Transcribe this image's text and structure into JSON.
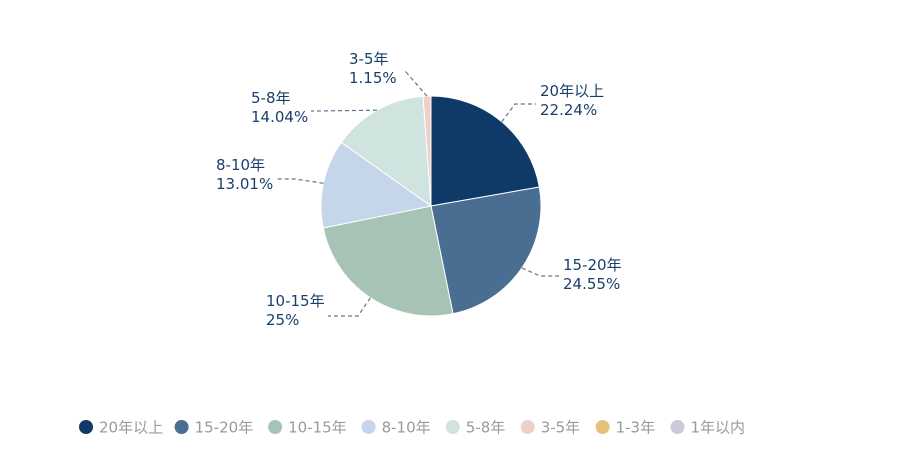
{
  "chart_data": {
    "type": "pie",
    "title": "",
    "legend_position": "bottom",
    "slices": [
      {
        "label": "20年以上",
        "value": 22.24,
        "value_text": "22.24%",
        "color": "#0f3966"
      },
      {
        "label": "15-20年",
        "value": 24.55,
        "value_text": "24.55%",
        "color": "#4a6e91"
      },
      {
        "label": "10-15年",
        "value": 25,
        "value_text": "25%",
        "color": "#a6c3b5"
      },
      {
        "label": "8-10年",
        "value": 13.01,
        "value_text": "13.01%",
        "color": "#c5d5ea"
      },
      {
        "label": "5-8年",
        "value": 14.04,
        "value_text": "14.04%",
        "color": "#cfe3df"
      },
      {
        "label": "3-5年",
        "value": 1.15,
        "value_text": "1.15%",
        "color": "#efd0c6"
      },
      {
        "label": "1-3年",
        "value": 0,
        "value_text": "",
        "color": "#e4c27a"
      },
      {
        "label": "1年以内",
        "value": 0,
        "value_text": "",
        "color": "#cfc8dd"
      }
    ]
  },
  "colors": {
    "label_text": "#1a3f6b",
    "leader_line": "#5a7694",
    "legend_text": "#9a9a9a"
  }
}
